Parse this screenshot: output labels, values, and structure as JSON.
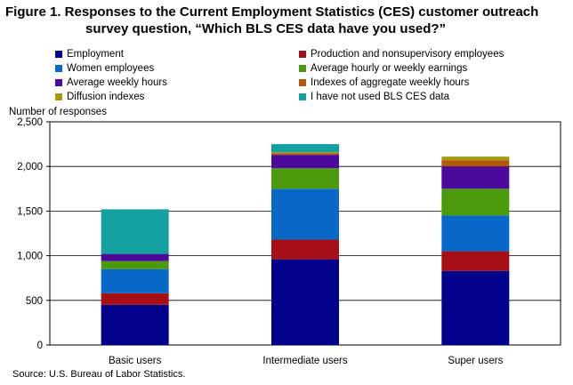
{
  "title_line1": "Figure 1. Responses to the Current Employment Statistics (CES) customer outreach",
  "title_line2": "survey question, “Which BLS CES data have you used?”",
  "source": "Source: U.S. Bureau of Labor Statistics.",
  "chart_data": {
    "type": "bar",
    "stacked": true,
    "title": "Figure 1. Responses to the Current Employment Statistics (CES) customer outreach survey question, “Which BLS CES data have you used?”",
    "xlabel": "",
    "ylabel": "Number of responses",
    "ylim": [
      0,
      2500
    ],
    "yticks": [
      0,
      500,
      1000,
      1500,
      2000,
      2500
    ],
    "ytick_labels": [
      "0",
      "500",
      "1,000",
      "1,500",
      "2,000",
      "2,500"
    ],
    "grid": true,
    "legend_placement": "top",
    "categories": [
      "Basic users",
      "Intermediate users",
      "Super users"
    ],
    "series": [
      {
        "name": "Employment",
        "color": "#00008b",
        "values": [
          450,
          960,
          830
        ]
      },
      {
        "name": "Production and nonsupervisory employees",
        "color": "#a50f15",
        "values": [
          130,
          220,
          220
        ]
      },
      {
        "name": "Women employees",
        "color": "#0868c8",
        "values": [
          270,
          570,
          400
        ]
      },
      {
        "name": "Average hourly or weekly earnings",
        "color": "#4a9a0c",
        "values": [
          90,
          230,
          300
        ]
      },
      {
        "name": "Average weekly hours",
        "color": "#4b0a9c",
        "values": [
          80,
          150,
          250
        ]
      },
      {
        "name": "Indexes of aggregate weekly hours",
        "color": "#b35806",
        "values": [
          0,
          20,
          70
        ]
      },
      {
        "name": "Diffusion indexes",
        "color": "#a39a12",
        "values": [
          0,
          10,
          40
        ]
      },
      {
        "name": "I have not used BLS CES data",
        "color": "#12a0a0",
        "values": [
          500,
          90,
          0
        ]
      }
    ]
  }
}
